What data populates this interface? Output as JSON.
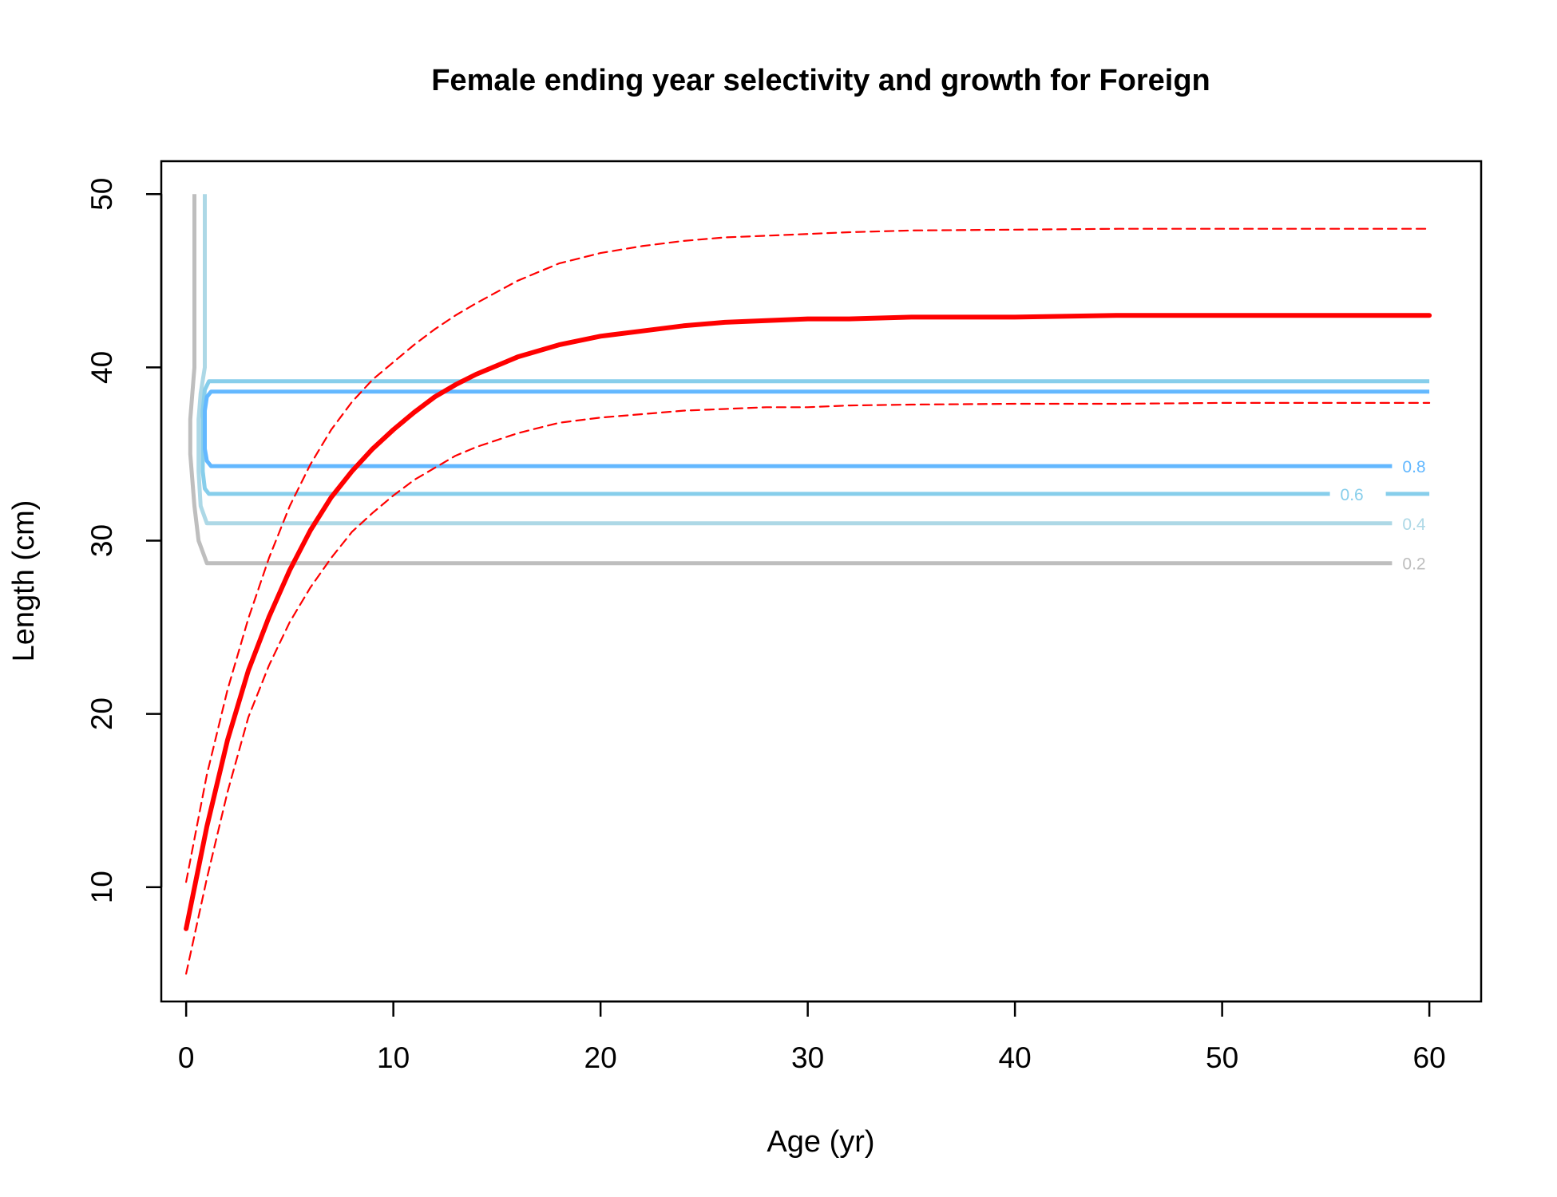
{
  "chart_data": {
    "type": "line",
    "title": "Female ending year selectivity and growth for Foreign",
    "xlabel": "Age (yr)",
    "ylabel": "Length (cm)",
    "xlim": [
      -1.2,
      62.5
    ],
    "ylim": [
      3.4,
      51.9
    ],
    "xticks": [
      0,
      10,
      20,
      30,
      40,
      50,
      60
    ],
    "yticks": [
      10,
      20,
      30,
      40,
      50
    ],
    "grid": false,
    "legend": "none",
    "series": [
      {
        "role": "mean growth",
        "color": "#ff0000",
        "style": "solid",
        "x": [
          0,
          1,
          2,
          3,
          4,
          5,
          6,
          7,
          8,
          9,
          10,
          11,
          12,
          13,
          14,
          16,
          18,
          20,
          22,
          24,
          26,
          28,
          30,
          32,
          35,
          40,
          45,
          50,
          55,
          60
        ],
        "y": [
          7.6,
          13.5,
          18.5,
          22.5,
          25.6,
          28.3,
          30.6,
          32.5,
          34.0,
          35.3,
          36.4,
          37.4,
          38.3,
          39.0,
          39.6,
          40.6,
          41.3,
          41.8,
          42.1,
          42.4,
          42.6,
          42.7,
          42.8,
          42.8,
          42.9,
          42.9,
          43.0,
          43.0,
          43.0,
          43.0
        ]
      },
      {
        "role": "upper interval",
        "color": "#ff0000",
        "style": "dashed",
        "x": [
          0,
          1,
          2,
          3,
          4,
          5,
          6,
          7,
          8,
          9,
          10,
          11,
          12,
          13,
          14,
          16,
          18,
          20,
          22,
          24,
          26,
          28,
          30,
          32,
          35,
          40,
          45,
          50,
          55,
          60
        ],
        "y": [
          10.3,
          16.5,
          21.4,
          25.5,
          29.0,
          32.0,
          34.4,
          36.4,
          38.0,
          39.3,
          40.3,
          41.3,
          42.2,
          43.0,
          43.7,
          45.0,
          46.0,
          46.6,
          47.0,
          47.3,
          47.5,
          47.6,
          47.7,
          47.8,
          47.9,
          47.95,
          48.0,
          48.0,
          48.0,
          48.0
        ]
      },
      {
        "role": "lower interval",
        "color": "#ff0000",
        "style": "dashed",
        "x": [
          0,
          1,
          2,
          3,
          4,
          5,
          6,
          7,
          8,
          9,
          10,
          11,
          12,
          13,
          14,
          16,
          18,
          20,
          22,
          24,
          26,
          28,
          30,
          32,
          35,
          40,
          45,
          50,
          55,
          60
        ],
        "y": [
          5.0,
          10.5,
          15.5,
          19.8,
          22.8,
          25.3,
          27.3,
          29.0,
          30.5,
          31.6,
          32.6,
          33.5,
          34.2,
          34.9,
          35.4,
          36.2,
          36.8,
          37.1,
          37.3,
          37.5,
          37.6,
          37.7,
          37.7,
          37.8,
          37.85,
          37.9,
          37.9,
          37.95,
          37.95,
          37.95
        ]
      }
    ],
    "contours": [
      {
        "level": "0.2",
        "color": "#bebebe",
        "x": [
          0.4,
          0.4,
          0.3,
          0.2,
          0.2,
          0.4,
          0.6,
          1.0,
          58.2
        ],
        "y": [
          50.0,
          40.0,
          38.5,
          37.0,
          35.0,
          32.0,
          30.0,
          28.7,
          28.7
        ],
        "label_x": 58.7,
        "label_y": 28.7
      },
      {
        "level": "0.4",
        "color": "#add8e6",
        "x": [
          0.9,
          0.9,
          0.7,
          0.6,
          0.6,
          0.7,
          1.0,
          58.2
        ],
        "y": [
          50.0,
          40.0,
          38.5,
          37.0,
          34.0,
          32.0,
          31.0,
          31.0
        ],
        "label_x": 58.7,
        "label_y": 31.0
      },
      {
        "level": "0.6",
        "color": "#87ceeb",
        "x": [
          60.0,
          1.1,
          0.9,
          0.8,
          0.8,
          0.9,
          1.1,
          55.2
        ],
        "y": [
          39.2,
          39.2,
          38.7,
          37.5,
          34.0,
          33.0,
          32.7,
          32.7
        ],
        "label_x": 55.7,
        "label_y": 32.7,
        "tail_x": [
          57.9,
          60.0
        ],
        "tail_y": [
          32.7,
          32.7
        ]
      },
      {
        "level": "0.8",
        "color": "#63b8ff",
        "x": [
          60.0,
          1.2,
          1.0,
          0.9,
          0.9,
          1.0,
          1.2,
          58.2
        ],
        "y": [
          38.6,
          38.6,
          38.3,
          37.5,
          35.3,
          34.6,
          34.3,
          34.3
        ],
        "label_x": 58.7,
        "label_y": 34.3
      }
    ]
  }
}
